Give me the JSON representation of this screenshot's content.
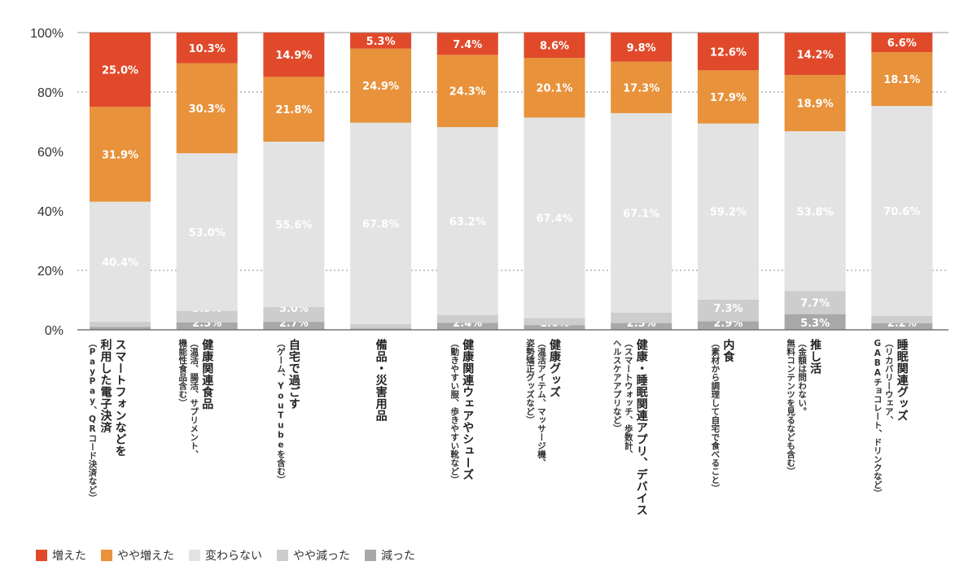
{
  "chart_data": {
    "type": "bar",
    "stacked": true,
    "ylim": [
      0,
      100
    ],
    "yticks": [
      "0%",
      "20%",
      "40%",
      "60%",
      "80%",
      "100%"
    ],
    "grid": "dotted at 20% and 80%",
    "legend_position": "bottom-left",
    "series": [
      {
        "name": "増えた",
        "color": "#e04a2b",
        "values": [
          25.0,
          10.3,
          14.9,
          5.3,
          7.4,
          8.6,
          9.8,
          12.6,
          14.2,
          6.6
        ]
      },
      {
        "name": "やや増えた",
        "color": "#e8923b",
        "values": [
          31.9,
          30.3,
          21.8,
          24.9,
          24.3,
          20.1,
          17.3,
          17.9,
          18.9,
          18.1
        ]
      },
      {
        "name": "変わらない",
        "color": "#e3e3e3",
        "values": [
          40.4,
          53.0,
          55.6,
          67.8,
          63.2,
          67.4,
          67.1,
          59.2,
          53.8,
          70.6
        ]
      },
      {
        "name": "やや減った",
        "color": "#cdcdcd",
        "values": [
          1.7,
          3.9,
          5.0,
          1.5,
          2.6,
          2.4,
          3.5,
          7.3,
          7.7,
          2.5
        ]
      },
      {
        "name": "減った",
        "color": "#a8a8a8",
        "values": [
          1.0,
          2.5,
          2.7,
          0.4,
          2.4,
          1.6,
          2.3,
          2.9,
          5.3,
          2.2
        ]
      }
    ],
    "categories": [
      {
        "title": [
          "スマートフォンなどを",
          "利用した電子決済"
        ],
        "sub": [
          "（PayPay、QRコード決済など）"
        ]
      },
      {
        "title": [
          "健康関連食品"
        ],
        "sub": [
          "（温活、腸活、サプリメント、",
          "機能性食品含む）"
        ]
      },
      {
        "title": [
          "自宅で過ごす"
        ],
        "sub": [
          "（ゲーム、YouTubeを含む）"
        ]
      },
      {
        "title": [
          "備品・災害用品"
        ],
        "sub": []
      },
      {
        "title": [
          "健康関連ウェアやシューズ"
        ],
        "sub": [
          "（動きやすい服、歩きやすい靴など）"
        ]
      },
      {
        "title": [
          "健康グッズ"
        ],
        "sub": [
          "（温活アイテム、マッサージ機、",
          "姿勢矯正グッズなど）"
        ]
      },
      {
        "title": [
          "健康・睡眠関連アプリ、デバイス"
        ],
        "sub": [
          "（スマートウォッチ、歩数計、",
          "ヘルスケアアプリなど）"
        ]
      },
      {
        "title": [
          "内食"
        ],
        "sub": [
          "（素材から調理して自宅で食べること）"
        ]
      },
      {
        "title": [
          "推し活"
        ],
        "sub": [
          "（金額は問わない。",
          "無料コンテンツを見るなども含む）"
        ]
      },
      {
        "title": [
          "睡眠関連グッズ"
        ],
        "sub": [
          "（リカバリーウェア、",
          "GABAチョコレート、ドリンクなど）"
        ]
      }
    ]
  }
}
